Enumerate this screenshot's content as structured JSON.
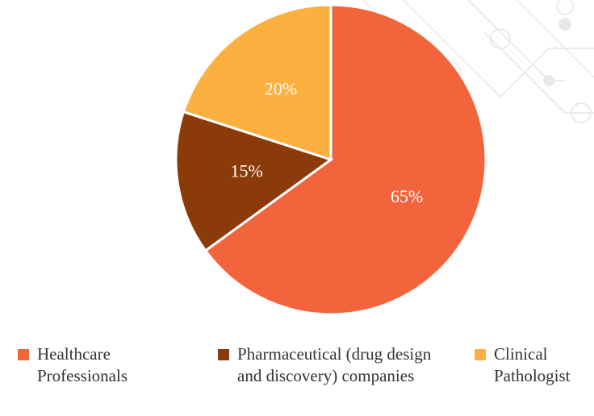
{
  "chart_data": {
    "type": "pie",
    "categories": [
      "Healthcare Professionals",
      "Pharmaceutical (drug design and discovery) companies",
      "Clinical Pathologist"
    ],
    "values": [
      65,
      15,
      20
    ],
    "value_labels": [
      "65%",
      "15%",
      "20%"
    ],
    "colors": [
      "#f2643c",
      "#8b3a0a",
      "#fbb040"
    ],
    "legend": "bottom"
  }
}
